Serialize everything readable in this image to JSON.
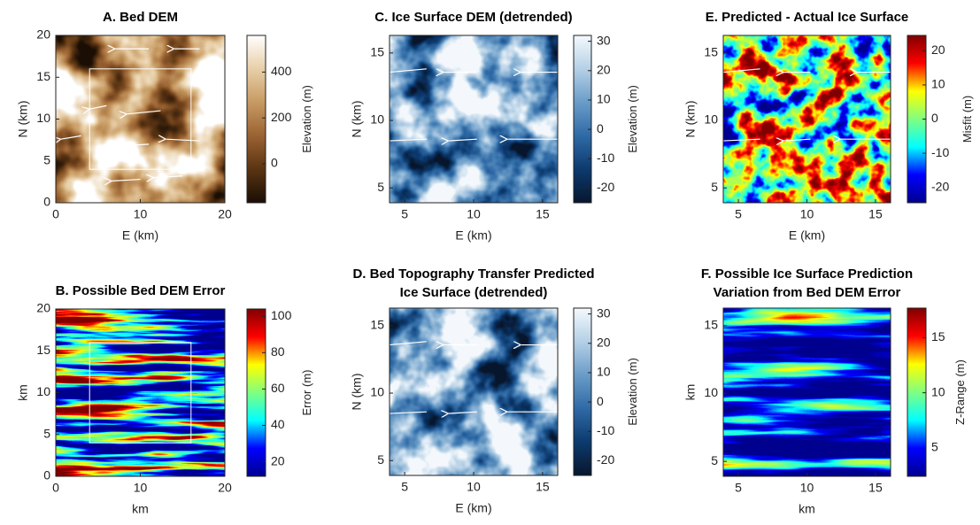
{
  "chart_data": [
    {
      "type": "heatmap",
      "title": "A. Bed DEM",
      "xlabel": "E (km)",
      "ylabel": "N (km)",
      "xlim": [
        0,
        20
      ],
      "ylim": [
        0,
        20
      ],
      "xticks": [
        0,
        10,
        20
      ],
      "yticks": [
        0,
        5,
        10,
        15,
        20
      ],
      "colorbar": {
        "label": "Elevation (m)",
        "lim": [
          -170,
          560
        ],
        "ticks": [
          0,
          200,
          400
        ]
      },
      "colors": [
        "#1a0e05",
        "#5a3412",
        "#9a6232",
        "#c79a62",
        "#e8cfa8",
        "#ffffff"
      ]
    },
    {
      "type": "heatmap",
      "title": "C. Ice Surface DEM (detrended)",
      "xlabel": "E (km)",
      "ylabel": "N (km)",
      "xlim": [
        3.9,
        16.1
      ],
      "ylim": [
        3.9,
        16.3
      ],
      "xticks": [
        5,
        10,
        15
      ],
      "yticks": [
        5,
        10,
        15
      ],
      "colorbar": {
        "label": "Elevation (m)",
        "lim": [
          -25,
          32
        ],
        "ticks": [
          -20,
          -10,
          0,
          10,
          20,
          30
        ]
      },
      "colors": [
        "#08162e",
        "#0c3a6e",
        "#2f6aa6",
        "#6a9cc8",
        "#b5d0e6",
        "#f4f9fd"
      ]
    },
    {
      "type": "heatmap",
      "title": "E. Predicted - Actual Ice Surface",
      "xlabel": "E (km)",
      "ylabel": "N (km)",
      "xlim": [
        3.9,
        16.1
      ],
      "ylim": [
        3.9,
        16.3
      ],
      "xticks": [
        5,
        10,
        15
      ],
      "yticks": [
        5,
        10,
        15
      ],
      "colorbar": {
        "label": "Misfit (m)",
        "lim": [
          -24.5,
          24.5
        ],
        "ticks": [
          -20,
          -10,
          0,
          10,
          20
        ]
      },
      "colors": [
        "#00008f",
        "#0000ff",
        "#00ffff",
        "#80ff80",
        "#ffff00",
        "#ff0000",
        "#800000"
      ]
    },
    {
      "type": "heatmap",
      "title": "B. Possible Bed DEM Error",
      "xlabel": "km",
      "ylabel": "km",
      "xlim": [
        0,
        20
      ],
      "ylim": [
        0,
        20
      ],
      "xticks": [
        0,
        10,
        20
      ],
      "yticks": [
        0,
        5,
        10,
        15,
        20
      ],
      "colorbar": {
        "label": "Error (m)",
        "lim": [
          12,
          104
        ],
        "ticks": [
          20,
          40,
          60,
          80,
          100
        ]
      },
      "colors": [
        "#00008f",
        "#0000ff",
        "#00ffff",
        "#80ff80",
        "#ffff00",
        "#ff0000",
        "#800000"
      ]
    },
    {
      "type": "heatmap",
      "title": [
        "D. Bed Topography Transfer Predicted",
        "Ice Surface (detrended)"
      ],
      "xlabel": "E (km)",
      "ylabel": "N (km)",
      "xlim": [
        3.9,
        16.1
      ],
      "ylim": [
        3.9,
        16.3
      ],
      "xticks": [
        5,
        10,
        15
      ],
      "yticks": [
        5,
        10,
        15
      ],
      "colorbar": {
        "label": "Elevation (m)",
        "lim": [
          -25,
          32
        ],
        "ticks": [
          -20,
          -10,
          0,
          10,
          20,
          30
        ]
      },
      "colors": [
        "#08162e",
        "#0c3a6e",
        "#2f6aa6",
        "#6a9cc8",
        "#b5d0e6",
        "#f4f9fd"
      ]
    },
    {
      "type": "heatmap",
      "title": [
        "F. Possible Ice Surface Prediction",
        "Variation from Bed DEM Error"
      ],
      "xlabel": "km",
      "ylabel": "km",
      "xlim": [
        3.9,
        16.1
      ],
      "ylim": [
        3.9,
        16.3
      ],
      "xticks": [
        5,
        10,
        15
      ],
      "yticks": [
        5,
        10,
        15
      ],
      "colorbar": {
        "label": "Z-Range (m)",
        "lim": [
          2.4,
          17.7
        ],
        "ticks": [
          5,
          10,
          15
        ]
      },
      "colors": [
        "#00008f",
        "#0000ff",
        "#00ffff",
        "#80ff80",
        "#ffff00",
        "#ff0000",
        "#800000"
      ]
    }
  ]
}
